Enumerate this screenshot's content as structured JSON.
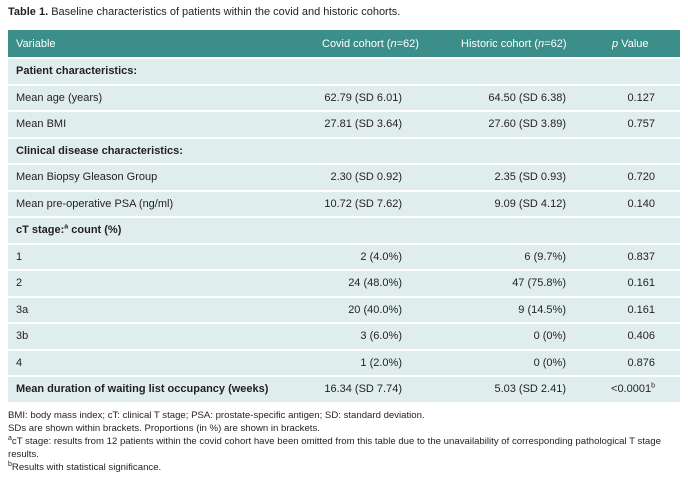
{
  "caption": {
    "label": "Table 1.",
    "text": "Baseline characteristics of patients within the covid and historic cohorts."
  },
  "table": {
    "header": [
      "Variable",
      [
        "Covid cohort (",
        "n",
        "=62)"
      ],
      [
        "Historic cohort (",
        "n",
        "=62)"
      ],
      [
        "p",
        " Value"
      ]
    ],
    "rows": [
      [
        "Patient characteristics:"
      ],
      [
        "Mean age (years)",
        "62.79 (SD 6.01)",
        "64.50 (SD 6.38)",
        "0.127"
      ],
      [
        "Mean BMI",
        "27.81 (SD 3.64)",
        "27.60 (SD 3.89)",
        "0.757"
      ],
      [
        "Clinical disease characteristics:"
      ],
      [
        "Mean Biopsy Gleason Group",
        "2.30 (SD 0.92)",
        "2.35 (SD 0.93)",
        "0.720"
      ],
      [
        "Mean pre-operative PSA (ng/ml)",
        "10.72 (SD 7.62)",
        "9.09 (SD 4.12)",
        "0.140"
      ],
      [
        [
          "cT stage:",
          "a",
          " count (%)"
        ]
      ],
      [
        "1",
        "2 (4.0%)",
        "6 (9.7%)",
        "0.837"
      ],
      [
        "2",
        "24 (48.0%)",
        "47 (75.8%)",
        "0.161"
      ],
      [
        "3a",
        "20 (40.0%)",
        "9 (14.5%)",
        "0.161"
      ],
      [
        "3b",
        "3 (6.0%)",
        "0 (0%)",
        "0.406"
      ],
      [
        "4",
        "1 (2.0%)",
        "0 (0%)",
        "0.876"
      ],
      [
        "Mean duration of waiting list occupancy (weeks)",
        "16.34 (SD 7.74)",
        "5.03 (SD 2.41)",
        [
          "<0.0001",
          "b"
        ]
      ]
    ]
  },
  "footnotes": [
    "BMI: body mass index; cT: clinical T stage; PSA: prostate-specific antigen; SD: standard deviation.",
    "SDs are shown within brackets. Proportions (in %) are shown in brackets.",
    [
      "a",
      "cT stage: results from 12 patients within the covid cohort have been omitted from this table due to the unavailability of corresponding pathological T stage results."
    ],
    [
      "b",
      "Results with statistical significance."
    ]
  ]
}
